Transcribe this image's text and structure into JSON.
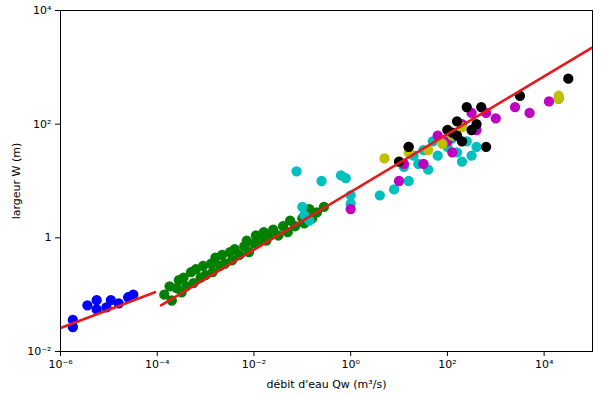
{
  "chart_data": {
    "type": "scatter",
    "xlabel": "débit d'eau Qw (m³/s)",
    "ylabel": "largeur W (m)",
    "log": true,
    "grid": false,
    "xlim": [
      1e-06,
      100000.0
    ],
    "ylim": [
      0.01,
      10000
    ],
    "xticks": [
      {
        "value": 1e-06,
        "label": "10⁻⁶"
      },
      {
        "value": 0.0001,
        "label": "10⁻⁴"
      },
      {
        "value": 0.01,
        "label": "10⁻²"
      },
      {
        "value": 1,
        "label": "10⁰"
      },
      {
        "value": 100,
        "label": "10²"
      },
      {
        "value": 10000,
        "label": "10⁴"
      }
    ],
    "yticks": [
      {
        "value": 0.01,
        "label": "10⁻²"
      },
      1,
      {
        "value": 100,
        "label": "10²"
      },
      {
        "value": 10000,
        "label": "10⁴"
      }
    ],
    "series": [
      {
        "type": "scatter",
        "marker": "circle",
        "color": "#0000ff",
        "x": [
          1.8e-06,
          1.8e-06,
          3.6e-06,
          5.6e-06,
          5.6e-06,
          8.9e-06,
          1.1e-05,
          1.6e-05,
          2.5e-05,
          3.2e-05
        ],
        "values": [
          0.036,
          0.027,
          0.065,
          0.08,
          0.055,
          0.06,
          0.08,
          0.07,
          0.09,
          0.1
        ]
      },
      {
        "type": "scatter",
        "marker": "circle",
        "color": "#008000",
        "x": [
          0.00014,
          0.00018,
          0.0002,
          0.00025,
          0.00028,
          0.00032,
          0.00035,
          0.0004,
          0.0005,
          0.00056,
          0.00063,
          0.00079,
          0.00089,
          0.001,
          0.0013,
          0.0014,
          0.0016,
          0.002,
          0.0022,
          0.0025,
          0.0032,
          0.0035,
          0.004,
          0.005,
          0.0063,
          0.0071,
          0.0079,
          0.01,
          0.011,
          0.013,
          0.016,
          0.018,
          0.02,
          0.025,
          0.032,
          0.04,
          0.05,
          0.056,
          0.071,
          0.1,
          0.11,
          0.14,
          0.16,
          0.2,
          0.28
        ],
        "values": [
          0.1,
          0.14,
          0.079,
          0.13,
          0.18,
          0.11,
          0.2,
          0.14,
          0.25,
          0.16,
          0.28,
          0.2,
          0.32,
          0.22,
          0.35,
          0.25,
          0.45,
          0.32,
          0.5,
          0.35,
          0.56,
          0.4,
          0.63,
          0.5,
          0.71,
          0.89,
          0.56,
          0.79,
          1.1,
          0.89,
          1.26,
          0.89,
          1.1,
          1.4,
          1.1,
          1.6,
          1.26,
          2.0,
          1.6,
          2.2,
          1.8,
          3.2,
          2.2,
          2.8,
          3.5
        ]
      },
      {
        "type": "scatter",
        "marker": "circle",
        "color": "#00bfbf",
        "x": [
          0.076,
          0.25,
          0.63,
          0.79,
          1,
          1,
          0.1,
          0.11,
          0.14,
          4,
          7.9,
          12.6,
          15.8,
          20,
          32,
          40,
          63,
          100,
          158,
          251,
          400,
          316,
          50,
          25,
          126,
          200
        ],
        "values": [
          14.8,
          10,
          12.6,
          11.2,
          5.6,
          4,
          3.5,
          2.5,
          2,
          5.6,
          7.1,
          17.8,
          10,
          28,
          35,
          15.8,
          28,
          40,
          32,
          50,
          40,
          28,
          50,
          20,
          56,
          22
        ]
      },
      {
        "type": "scatter",
        "marker": "circle",
        "color": "#bf00bf",
        "x": [
          1,
          12.6,
          10,
          15.8,
          63,
          100,
          200,
          316,
          400,
          631,
          1000,
          2500,
          5000,
          12600,
          20000,
          126,
          32
        ],
        "values": [
          3.2,
          20,
          10,
          40,
          63,
          50,
          100,
          158,
          79,
          158,
          126,
          200,
          158,
          251,
          282,
          32,
          20
        ]
      },
      {
        "type": "scatter",
        "marker": "circle",
        "color": "#bfbf00",
        "x": [
          5,
          10,
          40,
          79,
          126,
          200,
          20000,
          20000,
          15.8
        ],
        "values": [
          25,
          22,
          35,
          45,
          63,
          89,
          282,
          316,
          32
        ]
      },
      {
        "type": "scatter",
        "marker": "circle",
        "color": "#000000",
        "x": [
          10,
          15.8,
          100,
          126,
          158,
          251,
          400,
          631,
          500,
          158,
          200,
          3162,
          31600,
          316
        ],
        "values": [
          22,
          40,
          79,
          71,
          112,
          200,
          100,
          40,
          200,
          63,
          50,
          316,
          631,
          79
        ]
      },
      {
        "type": "line",
        "line_style": "solid",
        "color": "#e41a1c",
        "x": [
          1e-06,
          9e-05
        ],
        "values": [
          0.026,
          0.11
        ]
      },
      {
        "type": "line",
        "line_style": "solid",
        "color": "#e41a1c",
        "x": [
          0.00012,
          100000.0
        ],
        "values": [
          0.065,
          2240
        ]
      }
    ]
  }
}
